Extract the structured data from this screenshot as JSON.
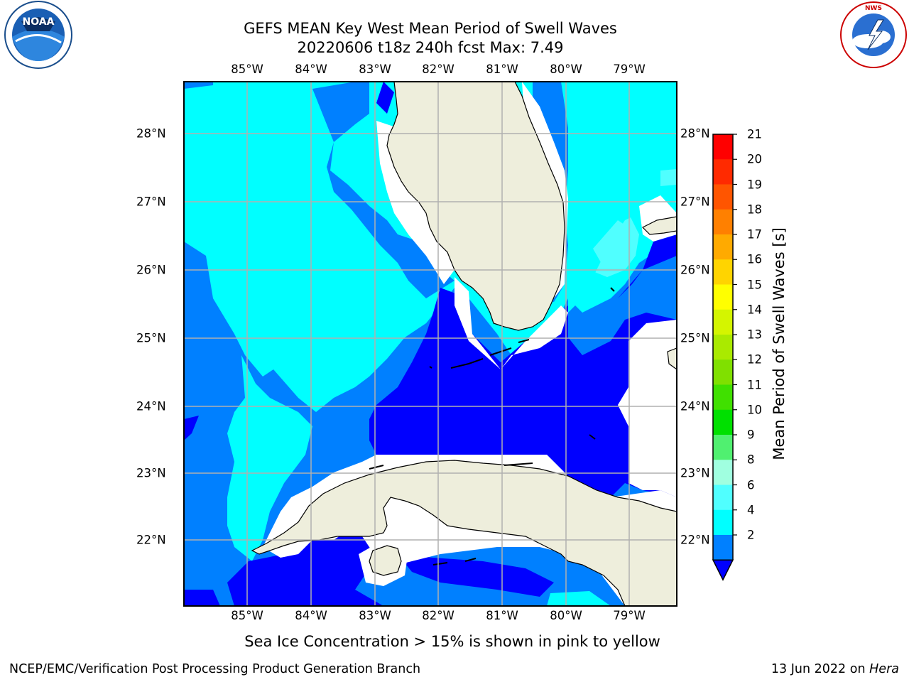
{
  "header": {
    "title_line1": "GEFS MEAN Key West Mean Period of Swell Waves",
    "title_line2": "20220606 t18z 240h fcst   Max: 7.49"
  },
  "logos": {
    "left": {
      "icon": "noaa-logo-icon",
      "text": "NATIONAL OCEANIC AND ATMOSPHERIC ADMINISTRATION · U.S. DEPARTMENT OF COMMERCE",
      "inner": "NOAA"
    },
    "right": {
      "icon": "nws-logo-icon",
      "text": "NATIONAL WEATHER SERVICE"
    }
  },
  "map": {
    "lon_labels": [
      "85°W",
      "84°W",
      "83°W",
      "82°W",
      "81°W",
      "80°W",
      "79°W"
    ],
    "lat_labels": [
      "28°N",
      "27°N",
      "26°N",
      "25°N",
      "24°N",
      "23°N",
      "22°N"
    ],
    "colors": {
      "land": "#eeeedc",
      "missing": "#ffffff",
      "grid": "#b0b0b0",
      "coast": "#000000"
    }
  },
  "colorbar": {
    "label": "Mean Period of Swell Waves [s]",
    "ticks": [
      "21",
      "20",
      "19",
      "18",
      "17",
      "16",
      "15",
      "14",
      "13",
      "12",
      "11",
      "10",
      "9",
      "8",
      "6",
      "4",
      "2"
    ],
    "colors_top_to_bottom": [
      "#ff0000",
      "#ff2a00",
      "#ff5500",
      "#ff8000",
      "#ffaa00",
      "#ffd400",
      "#ffff00",
      "#d4f500",
      "#aaea00",
      "#80e000",
      "#40e000",
      "#00e000",
      "#50f070",
      "#a0ffe0",
      "#50ffff",
      "#00ffff",
      "#0080ff"
    ],
    "extend_color": "#0000ff"
  },
  "notes": {
    "sea_ice": "Sea Ice Concentration > 15% is shown in pink to yellow"
  },
  "footer": {
    "left": "NCEP/EMC/Verification Post Processing Product Generation Branch",
    "right_date": "13 Jun 2022 on",
    "right_host": "Hera"
  }
}
